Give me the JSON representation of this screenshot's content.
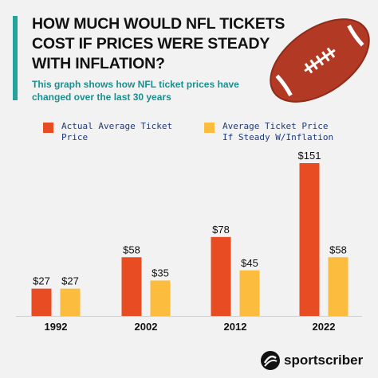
{
  "header": {
    "title": "HOW MUCH WOULD NFL TICKETS COST IF PRICES WERE STEADY WITH INFLATION?",
    "subtitle": "This graph shows how NFL ticket prices have changed over the last 30 years"
  },
  "colors": {
    "actual": "#e84c23",
    "inflation": "#fcbc3d",
    "accent": "#23a39b",
    "football": "#b23a24"
  },
  "legend": [
    {
      "label": "Actual Average Ticket Price",
      "color": "#e84c23"
    },
    {
      "label": "Average Ticket Price If Steady W/Inflation",
      "color": "#fcbc3d"
    }
  ],
  "chart_data": {
    "type": "bar",
    "categories": [
      "1992",
      "2002",
      "2012",
      "2022"
    ],
    "series": [
      {
        "name": "Actual Average Ticket Price",
        "values": [
          27,
          58,
          78,
          151
        ],
        "labels": [
          "$27",
          "$58",
          "$78",
          "$151"
        ]
      },
      {
        "name": "Average Ticket Price If Steady W/Inflation",
        "values": [
          27,
          35,
          45,
          58
        ],
        "labels": [
          "$27",
          "$35",
          "$45",
          "$58"
        ]
      }
    ],
    "ylim": [
      0,
      151
    ],
    "grid": false,
    "legend_position": "top"
  },
  "brand": {
    "name": "sportscriber",
    "icon": "football-logo-icon"
  }
}
